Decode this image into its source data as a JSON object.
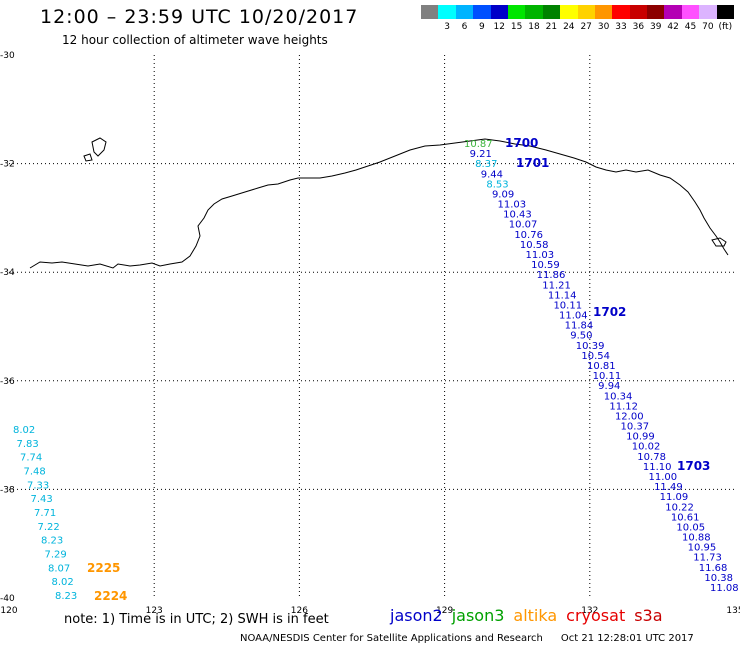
{
  "header": {
    "title": "12:00 – 23:59 UTC 10/20/2017",
    "subtitle": "12 hour collection of altimeter wave heights"
  },
  "legend": {
    "swatches": [
      {
        "color": "#808080",
        "label": ""
      },
      {
        "color": "#00ffff",
        "label": "3"
      },
      {
        "color": "#00b4ff",
        "label": "6"
      },
      {
        "color": "#0050ff",
        "label": "9"
      },
      {
        "color": "#0000c8",
        "label": "12"
      },
      {
        "color": "#00e600",
        "label": "15"
      },
      {
        "color": "#00b400",
        "label": "18"
      },
      {
        "color": "#008200",
        "label": "21"
      },
      {
        "color": "#ffff00",
        "label": "24"
      },
      {
        "color": "#ffd200",
        "label": "27"
      },
      {
        "color": "#ff9600",
        "label": "30"
      },
      {
        "color": "#ff0000",
        "label": "33"
      },
      {
        "color": "#c80000",
        "label": "36"
      },
      {
        "color": "#8c0000",
        "label": "39"
      },
      {
        "color": "#b400b4",
        "label": "42"
      },
      {
        "color": "#ff50ff",
        "label": "45"
      },
      {
        "color": "#dcb4ff",
        "label": "70"
      },
      {
        "color": "#000000",
        "label": "(ft)"
      }
    ]
  },
  "map": {
    "lon_range": [
      120,
      135
    ],
    "lat_range": [
      -40,
      -30
    ],
    "lon_ticks": [
      "120",
      "123",
      "126",
      "129",
      "132",
      "135"
    ],
    "lat_ticks": [
      "-30",
      "-32",
      "-34",
      "-36",
      "-38",
      "-40"
    ],
    "grid": "dotted",
    "coast_color": "#000000"
  },
  "colors": {
    "jason2": "#0000c8",
    "jason3": "#00a000",
    "altika": "#ff9600",
    "cryosat": "#e60000",
    "s3a": "#c80000",
    "light": "#00b4dc",
    "green": "#3cb43c",
    "orange": "#ff9600"
  },
  "tracks": {
    "time_labels": [
      {
        "text": "1700",
        "color": "jason2"
      },
      {
        "text": "1701",
        "color": "jason2"
      },
      {
        "text": "1702",
        "color": "jason2"
      },
      {
        "text": "1703",
        "color": "jason2"
      },
      {
        "text": "2225",
        "color": "orange"
      },
      {
        "text": "2224",
        "color": "orange"
      }
    ],
    "east": [
      {
        "v": "10.87",
        "c": "green"
      },
      {
        "v": "9.21",
        "c": "jason2"
      },
      {
        "v": "8.37",
        "c": "light"
      },
      {
        "v": "9.44",
        "c": "jason2"
      },
      {
        "v": "8.53",
        "c": "light"
      },
      {
        "v": "9.09",
        "c": "jason2"
      },
      {
        "v": "11.03",
        "c": "jason2"
      },
      {
        "v": "10.43",
        "c": "jason2"
      },
      {
        "v": "10.07",
        "c": "jason2"
      },
      {
        "v": "10.76",
        "c": "jason2"
      },
      {
        "v": "10.58",
        "c": "jason2"
      },
      {
        "v": "11.03",
        "c": "jason2"
      },
      {
        "v": "10.59",
        "c": "jason2"
      },
      {
        "v": "11.86",
        "c": "jason2"
      },
      {
        "v": "11.21",
        "c": "jason2"
      },
      {
        "v": "11.14",
        "c": "jason2"
      },
      {
        "v": "10.11",
        "c": "jason2"
      },
      {
        "v": "11.04",
        "c": "jason2"
      },
      {
        "v": "11.84",
        "c": "jason2"
      },
      {
        "v": "9.50",
        "c": "jason2"
      },
      {
        "v": "10.39",
        "c": "jason2"
      },
      {
        "v": "10.54",
        "c": "jason2"
      },
      {
        "v": "10.81",
        "c": "jason2"
      },
      {
        "v": "10.11",
        "c": "jason2"
      },
      {
        "v": "9.94",
        "c": "jason2"
      },
      {
        "v": "10.34",
        "c": "jason2"
      },
      {
        "v": "11.12",
        "c": "jason2"
      },
      {
        "v": "12.00",
        "c": "jason2"
      },
      {
        "v": "10.37",
        "c": "jason2"
      },
      {
        "v": "10.99",
        "c": "jason2"
      },
      {
        "v": "10.02",
        "c": "jason2"
      },
      {
        "v": "10.78",
        "c": "jason2"
      },
      {
        "v": "11.10",
        "c": "jason2"
      },
      {
        "v": "11.00",
        "c": "jason2"
      },
      {
        "v": "11.49",
        "c": "jason2"
      },
      {
        "v": "11.09",
        "c": "jason2"
      },
      {
        "v": "10.22",
        "c": "jason2"
      },
      {
        "v": "10.61",
        "c": "jason2"
      },
      {
        "v": "10.05",
        "c": "jason2"
      },
      {
        "v": "10.88",
        "c": "jason2"
      },
      {
        "v": "10.95",
        "c": "jason2"
      },
      {
        "v": "11.73",
        "c": "jason2"
      },
      {
        "v": "11.68",
        "c": "jason2"
      },
      {
        "v": "10.38",
        "c": "jason2"
      },
      {
        "v": "11.08",
        "c": "jason2"
      }
    ],
    "west": [
      {
        "v": "8.02",
        "c": "light"
      },
      {
        "v": "7.83",
        "c": "light"
      },
      {
        "v": "7.74",
        "c": "light"
      },
      {
        "v": "7.48",
        "c": "light"
      },
      {
        "v": "7.33",
        "c": "light"
      },
      {
        "v": "7.43",
        "c": "light"
      },
      {
        "v": "7.71",
        "c": "light"
      },
      {
        "v": "7.22",
        "c": "light"
      },
      {
        "v": "8.23",
        "c": "light"
      },
      {
        "v": "7.29",
        "c": "light"
      },
      {
        "v": "8.07",
        "c": "light"
      },
      {
        "v": "8.02",
        "c": "light"
      },
      {
        "v": "8.23",
        "c": "light"
      }
    ]
  },
  "footer": {
    "note": "note: 1) Time is in UTC; 2) SWH is in feet",
    "satellites": [
      {
        "name": "jason2",
        "color": "jason2"
      },
      {
        "name": "jason3",
        "color": "jason3"
      },
      {
        "name": "altika",
        "color": "altika"
      },
      {
        "name": "cryosat",
        "color": "cryosat"
      },
      {
        "name": "s3a",
        "color": "s3a"
      }
    ],
    "credit": "NOAA/NESDIS Center for Satellite Applications and Research",
    "timestamp": "Oct 21 12:28:01 UTC 2017"
  }
}
